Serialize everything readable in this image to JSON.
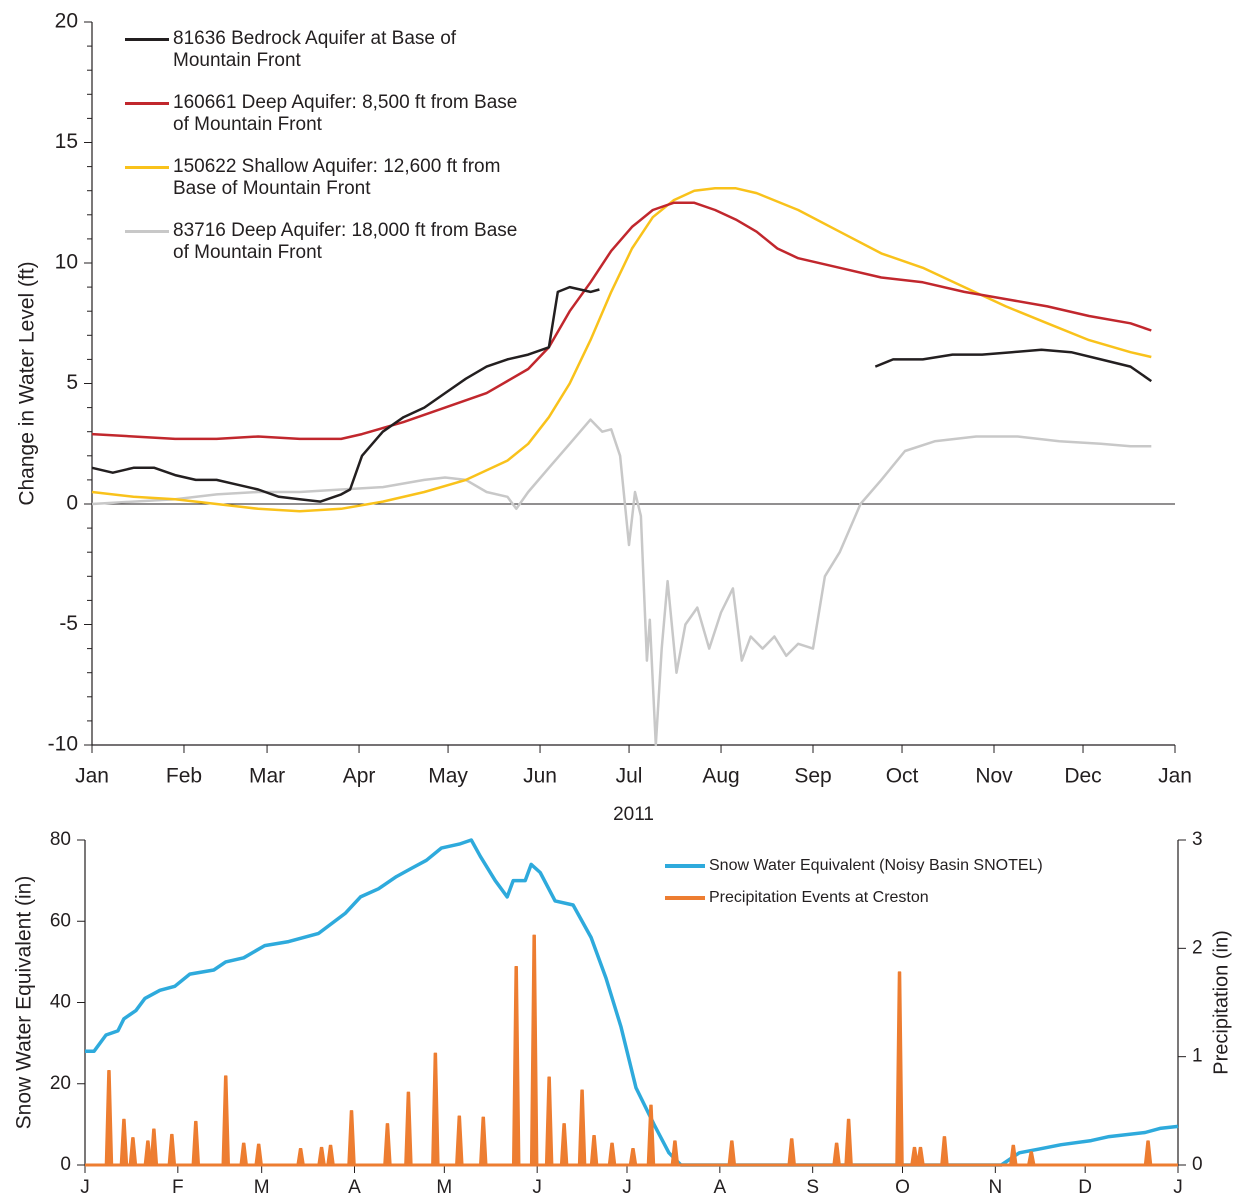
{
  "chart_data": [
    {
      "type": "line",
      "ylabel": "Change in Water Level (ft)",
      "xlabel": "2011",
      "xlim": [
        0,
        365
      ],
      "xticks": [
        {
          "value": 0,
          "label": "Jan"
        },
        {
          "value": 31,
          "label": "Feb"
        },
        {
          "value": 59,
          "label": "Mar"
        },
        {
          "value": 90,
          "label": "Apr"
        },
        {
          "value": 120,
          "label": "May"
        },
        {
          "value": 151,
          "label": "Jun"
        },
        {
          "value": 181,
          "label": "Jul"
        },
        {
          "value": 212,
          "label": "Aug"
        },
        {
          "value": 243,
          "label": "Sep"
        },
        {
          "value": 273,
          "label": "Oct"
        },
        {
          "value": 304,
          "label": "Nov"
        },
        {
          "value": 334,
          "label": "Dec"
        },
        {
          "value": 365,
          "label": "Jan"
        }
      ],
      "ylim": [
        -10,
        20
      ],
      "yticks": [
        -10,
        -5,
        0,
        5,
        10,
        15,
        20
      ],
      "zero_line": true,
      "legend": "upper left",
      "series": [
        {
          "name": "81636 Bedrock Aquifer at Base of Mountain Front",
          "color": "#231f20",
          "x": [
            0,
            7,
            14,
            21,
            28,
            35,
            42,
            49,
            56,
            63,
            70,
            77,
            84,
            87,
            91,
            98,
            105,
            112,
            119,
            126,
            133,
            140,
            147,
            154,
            157,
            161,
            168,
            171,
            220,
            264,
            270,
            280,
            290,
            300,
            310,
            320,
            330,
            340,
            350,
            357
          ],
          "values": [
            1.5,
            1.3,
            1.5,
            1.5,
            1.2,
            1.0,
            1.0,
            0.8,
            0.6,
            0.3,
            0.2,
            0.1,
            0.4,
            0.6,
            2.0,
            3.0,
            3.6,
            4.0,
            4.6,
            5.2,
            5.7,
            6.0,
            6.2,
            6.5,
            8.8,
            9.0,
            8.8,
            8.9,
            null,
            5.7,
            6.0,
            6.0,
            6.2,
            6.2,
            6.3,
            6.4,
            6.3,
            6.0,
            5.7,
            5.1
          ]
        },
        {
          "name": "160661 Deep Aquifer: 8,500 ft from Base of Mountain Front",
          "color": "#c1272d",
          "x": [
            0,
            14,
            28,
            42,
            56,
            70,
            84,
            91,
            105,
            119,
            133,
            147,
            154,
            161,
            168,
            175,
            182,
            189,
            196,
            203,
            210,
            217,
            224,
            231,
            238,
            252,
            266,
            280,
            294,
            308,
            322,
            336,
            350,
            357
          ],
          "values": [
            2.9,
            2.8,
            2.7,
            2.7,
            2.8,
            2.7,
            2.7,
            2.9,
            3.4,
            4.0,
            4.6,
            5.6,
            6.5,
            8.0,
            9.2,
            10.5,
            11.5,
            12.2,
            12.5,
            12.5,
            12.2,
            11.8,
            11.3,
            10.6,
            10.2,
            9.8,
            9.4,
            9.2,
            8.8,
            8.5,
            8.2,
            7.8,
            7.5,
            7.2
          ]
        },
        {
          "name": "150622 Shallow Aquifer: 12,600 ft from Base of Mountain Front",
          "color": "#f9c21b",
          "x": [
            0,
            14,
            28,
            42,
            56,
            70,
            84,
            98,
            112,
            126,
            140,
            147,
            154,
            161,
            168,
            175,
            182,
            189,
            196,
            203,
            210,
            217,
            224,
            238,
            252,
            266,
            280,
            294,
            308,
            322,
            336,
            350,
            357
          ],
          "values": [
            0.5,
            0.3,
            0.2,
            0.0,
            -0.2,
            -0.3,
            -0.2,
            0.1,
            0.5,
            1.0,
            1.8,
            2.5,
            3.6,
            5.0,
            6.8,
            8.8,
            10.6,
            11.9,
            12.6,
            13.0,
            13.1,
            13.1,
            12.9,
            12.2,
            11.3,
            10.4,
            9.8,
            9.0,
            8.2,
            7.5,
            6.8,
            6.3,
            6.1
          ]
        },
        {
          "name": "83716 Deep Aquifer: 18,000 ft from Base of Mountain Front",
          "color": "#c8c8c8",
          "x": [
            0,
            14,
            28,
            42,
            56,
            70,
            84,
            98,
            112,
            119,
            126,
            133,
            140,
            143,
            147,
            154,
            161,
            168,
            172,
            175,
            178,
            181,
            183,
            185,
            187,
            188,
            190,
            192,
            194,
            197,
            200,
            204,
            208,
            212,
            216,
            219,
            222,
            226,
            230,
            234,
            238,
            243,
            247,
            252,
            259,
            266,
            274,
            284,
            298,
            312,
            326,
            340,
            350,
            357
          ],
          "values": [
            0.0,
            0.1,
            0.2,
            0.4,
            0.5,
            0.5,
            0.6,
            0.7,
            1.0,
            1.1,
            1.0,
            0.5,
            0.3,
            -0.2,
            0.5,
            1.5,
            2.5,
            3.5,
            3.0,
            3.1,
            2.0,
            -1.7,
            0.5,
            -0.5,
            -6.5,
            -4.8,
            -10.0,
            -6.0,
            -3.2,
            -7.0,
            -5.0,
            -4.3,
            -6.0,
            -4.5,
            -3.5,
            -6.5,
            -5.5,
            -6.0,
            -5.5,
            -6.3,
            -5.8,
            -6.0,
            -3.0,
            -2.0,
            0.0,
            1.0,
            2.2,
            2.6,
            2.8,
            2.8,
            2.6,
            2.5,
            2.4,
            2.4
          ]
        }
      ]
    },
    {
      "type": "line",
      "ylabel": "Snow Water Equivalent (in)",
      "y2label": "Precipitation (in)",
      "xlim": [
        0,
        365
      ],
      "xticks": [
        {
          "value": 0,
          "label": "J"
        },
        {
          "value": 31,
          "label": "F"
        },
        {
          "value": 59,
          "label": "M"
        },
        {
          "value": 90,
          "label": "A"
        },
        {
          "value": 120,
          "label": "M"
        },
        {
          "value": 151,
          "label": "J"
        },
        {
          "value": 181,
          "label": "J"
        },
        {
          "value": 212,
          "label": "A"
        },
        {
          "value": 243,
          "label": "S"
        },
        {
          "value": 273,
          "label": "O"
        },
        {
          "value": 304,
          "label": "N"
        },
        {
          "value": 334,
          "label": "D"
        },
        {
          "value": 365,
          "label": "J"
        }
      ],
      "ylim": [
        0,
        80
      ],
      "yticks": [
        0,
        20,
        40,
        60,
        80
      ],
      "y2lim": [
        0,
        3
      ],
      "y2ticks": [
        0,
        1,
        2,
        3
      ],
      "legend": "upper right",
      "series": [
        {
          "name": "Snow Water Equivalent (Noisy Basin SNOTEL)",
          "color": "#2eaadc",
          "style": "line",
          "x": [
            0,
            3,
            7,
            11,
            13,
            17,
            20,
            25,
            30,
            35,
            43,
            47,
            53,
            60,
            68,
            78,
            87,
            92,
            98,
            104,
            109,
            114,
            119,
            125,
            129,
            132,
            137,
            141,
            143,
            147,
            149,
            152,
            157,
            163,
            169,
            174,
            179,
            184,
            190,
            195,
            199,
            306,
            312,
            319,
            326,
            336,
            342,
            354,
            359,
            365
          ],
          "values": [
            28,
            28,
            32,
            33,
            36,
            38,
            41,
            43,
            44,
            47,
            48,
            50,
            51,
            54,
            55,
            57,
            62,
            66,
            68,
            71,
            73,
            75,
            78,
            79,
            80,
            76,
            70,
            66,
            70,
            70,
            74,
            72,
            65,
            64,
            56,
            46,
            34,
            19,
            10,
            3,
            0,
            0,
            3,
            4,
            5,
            6,
            7,
            8,
            9,
            9.5
          ]
        },
        {
          "name": "Precipitation Events at Creston",
          "color": "#ed7d31",
          "style": "spike",
          "axis": "y2",
          "x": [
            8,
            13,
            16,
            21,
            23,
            29,
            37,
            47,
            53,
            58,
            72,
            79,
            82,
            89,
            101,
            108,
            117,
            125,
            133,
            144,
            150,
            155,
            160,
            166,
            170,
            176,
            183,
            189,
            197,
            216,
            236,
            251,
            255,
            272,
            277,
            279,
            287,
            310,
            316,
            355
          ],
          "values": [
            0.87,
            0.42,
            0.25,
            0.22,
            0.33,
            0.28,
            0.4,
            0.82,
            0.2,
            0.19,
            0.15,
            0.16,
            0.18,
            0.5,
            0.38,
            0.67,
            1.03,
            0.45,
            0.44,
            1.83,
            2.12,
            0.81,
            0.38,
            0.69,
            0.27,
            0.2,
            0.15,
            0.55,
            0.22,
            0.22,
            0.24,
            0.2,
            0.42,
            1.78,
            0.16,
            0.16,
            0.26,
            0.18,
            0.12,
            0.22
          ]
        }
      ]
    }
  ]
}
